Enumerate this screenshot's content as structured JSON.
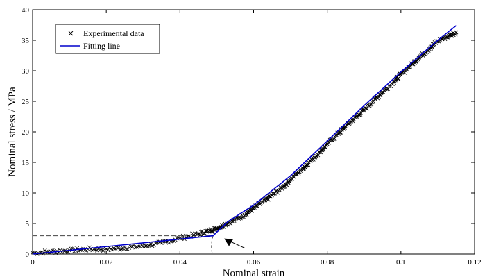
{
  "chart_data": {
    "type": "line",
    "xlabel": "Nominal strain",
    "ylabel": "Nominal stress / MPa",
    "xlim": [
      0,
      0.12
    ],
    "ylim": [
      0,
      40
    ],
    "x_ticks": [
      "0",
      "0.02",
      "0.04",
      "0.06",
      "0.08",
      "0.1",
      "0.12"
    ],
    "y_ticks": [
      "0",
      "5",
      "10",
      "15",
      "20",
      "25",
      "30",
      "35",
      "40"
    ],
    "grid": false,
    "legend_position": "top-left",
    "series": [
      {
        "name": "Experimental data",
        "kind": "scatter",
        "marker": "x",
        "color": "#000000",
        "x": [
          0.0,
          0.005,
          0.01,
          0.015,
          0.02,
          0.025,
          0.03,
          0.035,
          0.04,
          0.045,
          0.048,
          0.05,
          0.052,
          0.055,
          0.058,
          0.06,
          0.063,
          0.065,
          0.068,
          0.07,
          0.073,
          0.075,
          0.078,
          0.08,
          0.083,
          0.085,
          0.088,
          0.09,
          0.093,
          0.095,
          0.098,
          0.1,
          0.103,
          0.105,
          0.108,
          0.11,
          0.113,
          0.115
        ],
        "y": [
          0.2,
          0.4,
          0.6,
          0.8,
          0.8,
          1.0,
          1.3,
          1.8,
          2.6,
          3.3,
          3.8,
          4.2,
          4.8,
          5.6,
          6.6,
          7.5,
          8.7,
          9.6,
          11.0,
          12.2,
          13.8,
          15.0,
          16.7,
          18.0,
          19.7,
          20.9,
          22.5,
          23.6,
          25.4,
          26.5,
          28.2,
          29.4,
          31.1,
          32.2,
          33.8,
          34.9,
          35.7,
          36.3
        ]
      },
      {
        "name": "Fitting line",
        "kind": "line",
        "color": "#0000cc",
        "x": [
          0,
          0.049,
          0.053,
          0.06,
          0.07,
          0.08,
          0.09,
          0.1,
          0.11,
          0.115
        ],
        "y": [
          0,
          3.0,
          5.3,
          8.0,
          12.8,
          18.5,
          24.3,
          29.8,
          35.0,
          37.4
        ]
      }
    ],
    "annotations": [
      {
        "type": "dashed-guide",
        "point": [
          0.049,
          3.0
        ],
        "description": "horizontal dashed line from y-axis to point, and curved dashed line down to x-axis"
      },
      {
        "type": "arrow",
        "target": [
          0.0505,
          0.5
        ]
      }
    ]
  }
}
